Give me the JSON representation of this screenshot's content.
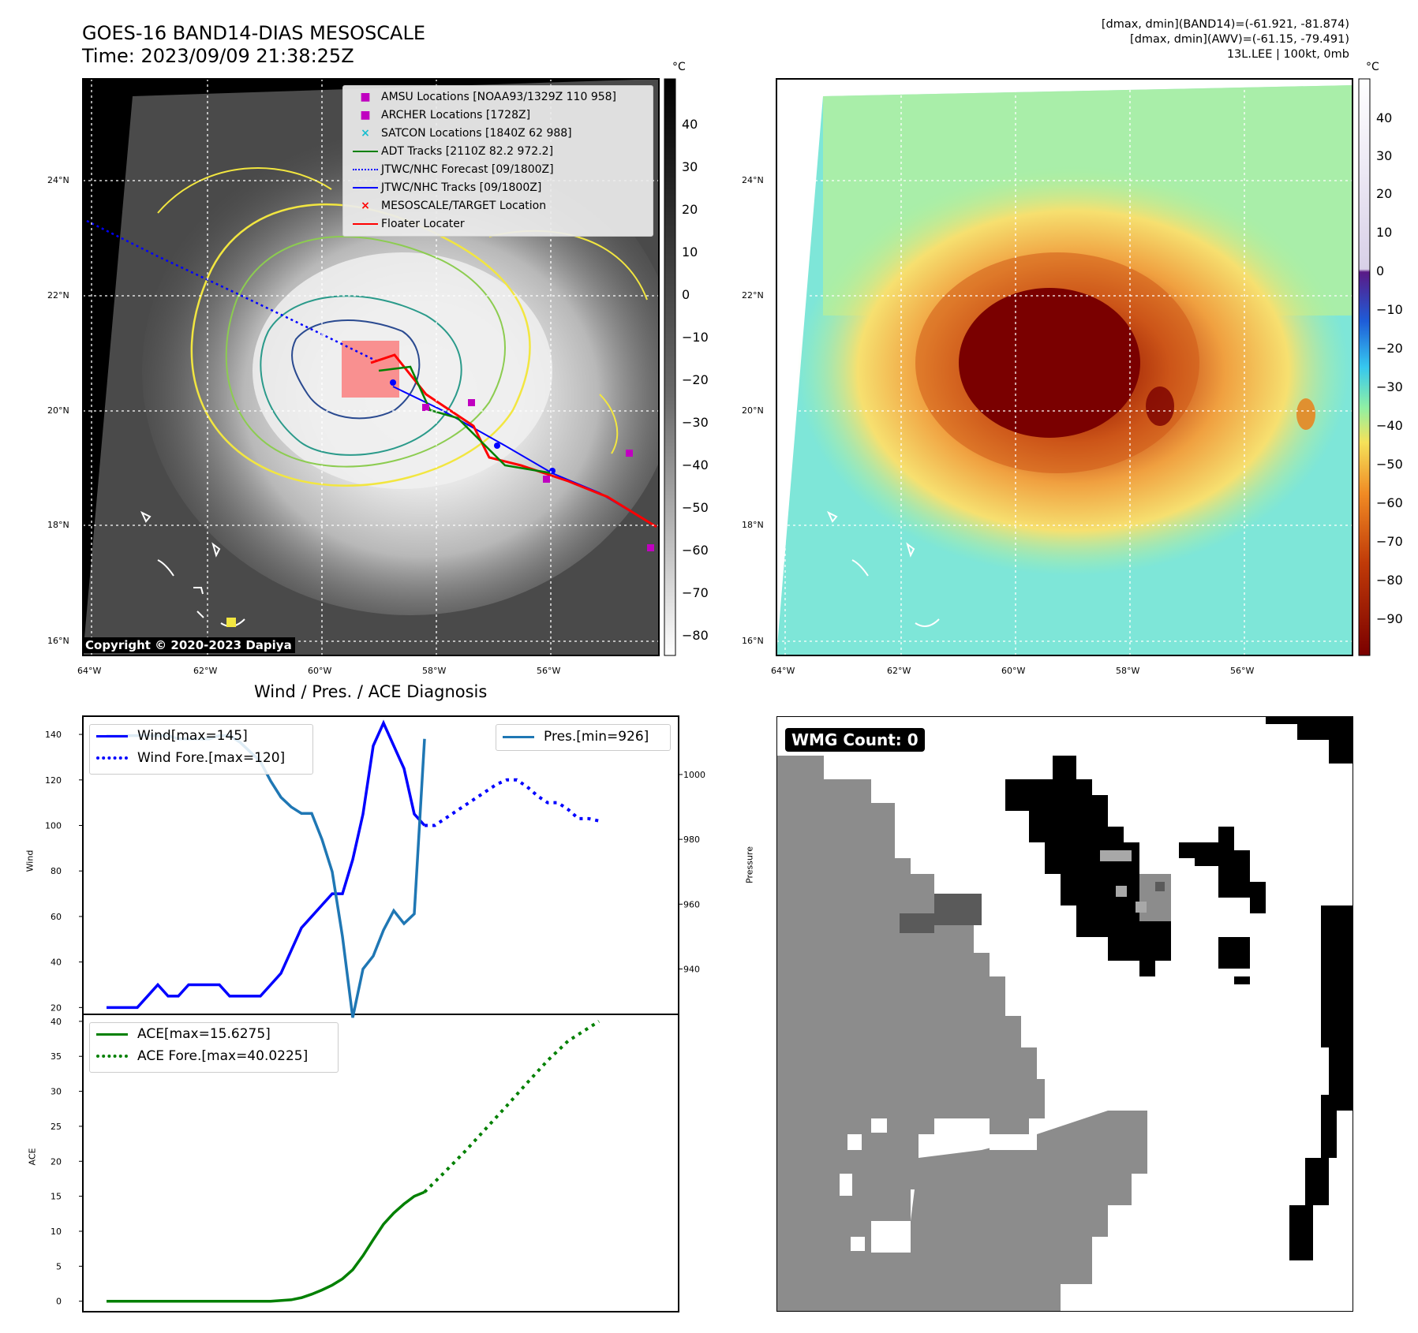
{
  "header": {
    "title": "GOES-16 BAND14-DIAS MESOSCALE",
    "time": "Time: 2023/09/09 21:38:25Z",
    "info": [
      "[dmax, dmin](BAND14)=(-61.921, -81.874)",
      "[dmax, dmin](AWV)=(-61.15, -79.491)",
      "13L.LEE | 100kt, 0mb"
    ]
  },
  "map_axes": {
    "lat_labels": [
      "24°N",
      "22°N",
      "20°N",
      "18°N",
      "16°N"
    ],
    "lon_labels_left": [
      "64°W",
      "62°W",
      "60°W",
      "58°W",
      "56°W"
    ],
    "lon_labels_right": [
      "64°W",
      "62°W",
      "60°W",
      "58°W",
      "56°W"
    ],
    "copyright": "Copyright © 2020-2023 Dapiya"
  },
  "colorbar_gray": {
    "unit": "°C",
    "ticks": [
      "40",
      "30",
      "20",
      "10",
      "0",
      "−10",
      "−20",
      "−30",
      "−40",
      "−50",
      "−60",
      "−70",
      "−80"
    ]
  },
  "colorbar_color": {
    "unit": "°C",
    "ticks": [
      "40",
      "30",
      "20",
      "10",
      "0",
      "−10",
      "−20",
      "−30",
      "−40",
      "−50",
      "−60",
      "−70",
      "−80",
      "−90"
    ],
    "colors": [
      "#ffffff",
      "#5a1a86",
      "#1e5cd8",
      "#36c8ef",
      "#8ff0a4",
      "#f5e25a",
      "#f08a24",
      "#c03a08",
      "#7a0000"
    ]
  },
  "legend_map": {
    "items": [
      {
        "label": "AMSU Locations [NOAA93/1329Z 110 958]",
        "color": "#c000c0"
      },
      {
        "label": "ARCHER Locations [1728Z]",
        "color": "#c000c0"
      },
      {
        "label": "SATCON Locations [1840Z 62 988]",
        "color": "#17becf"
      },
      {
        "label": "ADT Tracks [2110Z 82.2 972.2]",
        "color": "#008000"
      },
      {
        "label": "JTWC/NHC Forecast [09/1800Z]",
        "color": "#0000ff"
      },
      {
        "label": "JTWC/NHC Tracks [09/1800Z]",
        "color": "#0000ff"
      },
      {
        "label": "MESOSCALE/TARGET Location",
        "color": "#ff0000"
      },
      {
        "label": "Floater Locater",
        "color": "#ff0000"
      }
    ]
  },
  "diagnosis": {
    "title": "Wind / Pres. / ACE Diagnosis",
    "wind_ylabel": "Wind",
    "pres_ylabel": "Pressure",
    "ace_ylabel": "ACE",
    "wind_ticks": [
      "140",
      "120",
      "100",
      "80",
      "60",
      "40",
      "20"
    ],
    "pres_ticks": [
      "1000",
      "980",
      "960",
      "940"
    ],
    "ace_ticks": [
      "40",
      "35",
      "30",
      "25",
      "20",
      "15",
      "10",
      "5",
      "0"
    ],
    "legend_wind": [
      "Wind[max=145]",
      "Wind Fore.[max=120]"
    ],
    "legend_pres": [
      "Pres.[min=926]"
    ],
    "legend_ace": [
      "ACE[max=15.6275]",
      "ACE Fore.[max=40.0225]"
    ]
  },
  "wmg": {
    "label": "WMG Count: 0"
  },
  "chart_data": [
    {
      "type": "line",
      "title": "Wind / Pres. / ACE Diagnosis",
      "ylabel": "Wind",
      "ylim": [
        17,
        148
      ],
      "series": [
        {
          "name": "Wind[max=145]",
          "x": [
            0,
            1,
            2,
            3,
            4,
            5,
            6,
            7,
            8,
            9,
            10,
            11,
            12,
            13,
            14,
            15,
            16,
            17,
            18,
            19,
            20,
            21,
            22,
            23,
            24,
            25,
            26,
            27,
            28,
            29,
            30,
            31
          ],
          "values": [
            20,
            20,
            20,
            20,
            25,
            30,
            25,
            25,
            30,
            30,
            30,
            30,
            25,
            25,
            25,
            25,
            30,
            35,
            45,
            55,
            60,
            65,
            70,
            70,
            85,
            105,
            135,
            145,
            135,
            125,
            105,
            100
          ],
          "color": "#0000ff"
        },
        {
          "name": "Wind Fore.[max=120]",
          "x": [
            31,
            32,
            33,
            34,
            35,
            36,
            37,
            38,
            39,
            40,
            41,
            42,
            43,
            44,
            45,
            46,
            47,
            48
          ],
          "values": [
            100,
            100,
            103,
            106,
            109,
            112,
            115,
            118,
            120,
            120,
            117,
            113,
            110,
            110,
            107,
            103,
            103,
            102
          ],
          "color": "#0000ff"
        }
      ]
    },
    {
      "type": "line",
      "ylabel": "Pressure",
      "ylim": [
        926,
        1018
      ],
      "series": [
        {
          "name": "Pres.[min=926]",
          "x": [
            0,
            1,
            2,
            3,
            4,
            5,
            6,
            7,
            8,
            9,
            10,
            11,
            12,
            13,
            14,
            15,
            16,
            17,
            18,
            19,
            20,
            21,
            22,
            23,
            24,
            25,
            26,
            27,
            28,
            29,
            30,
            31
          ],
          "values": [
            1012,
            1012,
            1012,
            1012,
            1012,
            1012,
            1012,
            1011,
            1011,
            1011,
            1011,
            1012,
            1012,
            1010,
            1007,
            1004,
            998,
            993,
            990,
            988,
            988,
            980,
            970,
            950,
            925,
            940,
            944,
            952,
            958,
            954,
            957,
            1011
          ],
          "color": "#1f77b4"
        }
      ]
    },
    {
      "type": "line",
      "ylabel": "ACE",
      "ylim": [
        -1.5,
        41
      ],
      "series": [
        {
          "name": "ACE[max=15.6275]",
          "x": [
            0,
            2,
            4,
            6,
            8,
            10,
            12,
            14,
            16,
            18,
            19,
            20,
            21,
            22,
            23,
            24,
            25,
            26,
            27,
            28,
            29,
            30,
            31
          ],
          "values": [
            0,
            0,
            0,
            0,
            0,
            0,
            0,
            0,
            0,
            0.2,
            0.5,
            1,
            1.6,
            2.3,
            3.2,
            4.5,
            6.5,
            8.8,
            11,
            12.6,
            13.9,
            15.0,
            15.6
          ],
          "color": "#008000"
        },
        {
          "name": "ACE Fore.[max=40.0225]",
          "x": [
            31,
            33,
            35,
            37,
            39,
            41,
            43,
            45,
            48
          ],
          "values": [
            15.6,
            18.5,
            21.5,
            24.7,
            27.9,
            31.2,
            34.4,
            37.2,
            40.0
          ],
          "color": "#008000"
        }
      ]
    }
  ]
}
